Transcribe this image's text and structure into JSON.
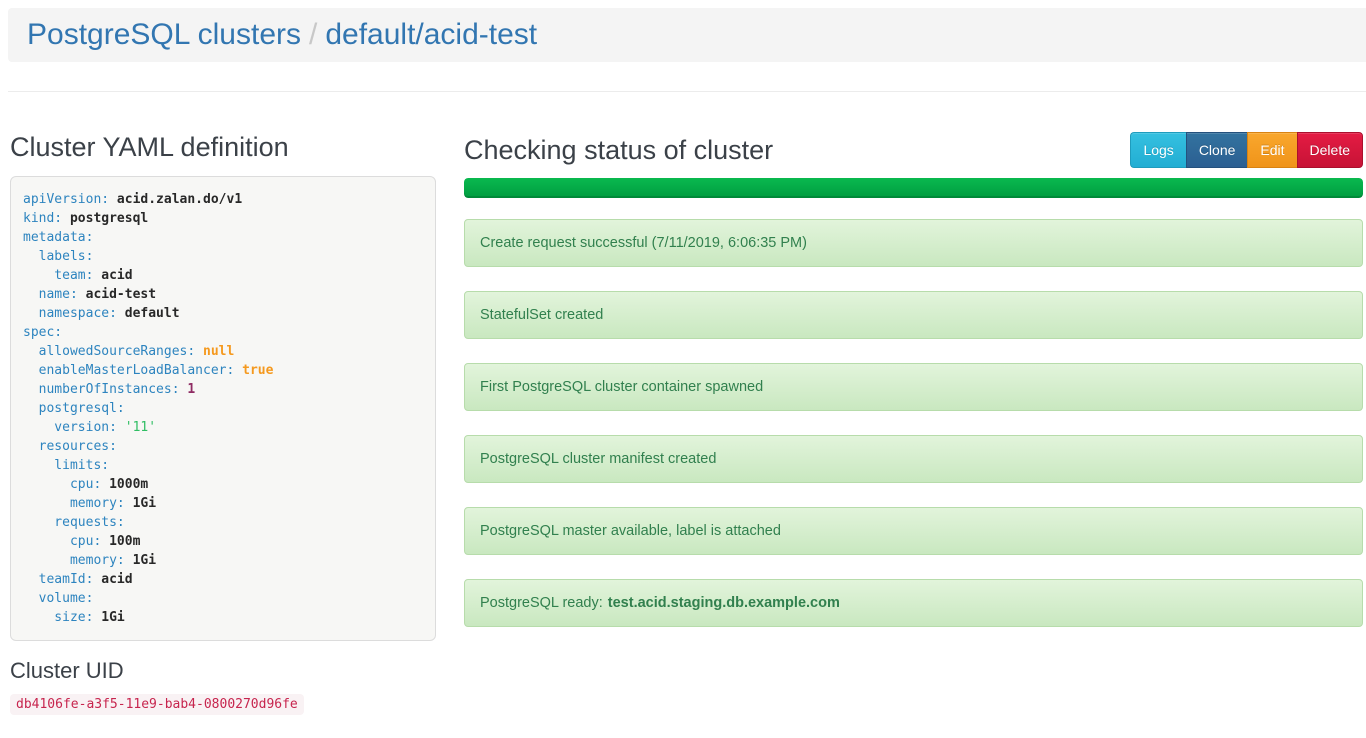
{
  "header": {
    "breadcrumb_root": "PostgreSQL clusters",
    "separator": "/",
    "breadcrumb_current": "default/acid-test"
  },
  "yaml_section": {
    "title": "Cluster YAML definition",
    "lines": [
      [
        {
          "t": "key",
          "v": "apiVersion:"
        },
        {
          "t": "val",
          "v": " acid.zalan.do/v1"
        }
      ],
      [
        {
          "t": "key",
          "v": "kind:"
        },
        {
          "t": "val",
          "v": " postgresql"
        }
      ],
      [
        {
          "t": "key",
          "v": "metadata:"
        }
      ],
      [
        {
          "t": "key",
          "v": "  labels:"
        }
      ],
      [
        {
          "t": "key",
          "v": "    team:"
        },
        {
          "t": "val",
          "v": " acid"
        }
      ],
      [
        {
          "t": "key",
          "v": "  name:"
        },
        {
          "t": "val",
          "v": " acid-test"
        }
      ],
      [
        {
          "t": "key",
          "v": "  namespace:"
        },
        {
          "t": "val",
          "v": " default"
        }
      ],
      [
        {
          "t": "key",
          "v": "spec:"
        }
      ],
      [
        {
          "t": "key",
          "v": "  allowedSourceRanges:"
        },
        {
          "t": "literal",
          "v": " null"
        }
      ],
      [
        {
          "t": "key",
          "v": "  enableMasterLoadBalancer:"
        },
        {
          "t": "literal",
          "v": " true"
        }
      ],
      [
        {
          "t": "key",
          "v": "  numberOfInstances:"
        },
        {
          "t": "number",
          "v": " 1"
        }
      ],
      [
        {
          "t": "key",
          "v": "  postgresql:"
        }
      ],
      [
        {
          "t": "key",
          "v": "    version:"
        },
        {
          "t": "string",
          "v": " '11'"
        }
      ],
      [
        {
          "t": "key",
          "v": "  resources:"
        }
      ],
      [
        {
          "t": "key",
          "v": "    limits:"
        }
      ],
      [
        {
          "t": "key",
          "v": "      cpu:"
        },
        {
          "t": "val",
          "v": " 1000m"
        }
      ],
      [
        {
          "t": "key",
          "v": "      memory:"
        },
        {
          "t": "val",
          "v": " 1Gi"
        }
      ],
      [
        {
          "t": "key",
          "v": "    requests:"
        }
      ],
      [
        {
          "t": "key",
          "v": "      cpu:"
        },
        {
          "t": "val",
          "v": " 100m"
        }
      ],
      [
        {
          "t": "key",
          "v": "      memory:"
        },
        {
          "t": "val",
          "v": " 1Gi"
        }
      ],
      [
        {
          "t": "key",
          "v": "  teamId:"
        },
        {
          "t": "val",
          "v": " acid"
        }
      ],
      [
        {
          "t": "key",
          "v": "  volume:"
        }
      ],
      [
        {
          "t": "key",
          "v": "    size:"
        },
        {
          "t": "val",
          "v": " 1Gi"
        }
      ]
    ]
  },
  "uid_section": {
    "title": "Cluster UID",
    "uid": "db4106fe-a3f5-11e9-bab4-0800270d96fe"
  },
  "status_section": {
    "title": "Checking status of cluster",
    "buttons": [
      {
        "label": "Logs",
        "type": "info"
      },
      {
        "label": "Clone",
        "type": "primary"
      },
      {
        "label": "Edit",
        "type": "warning"
      },
      {
        "label": "Delete",
        "type": "danger"
      }
    ],
    "progress": {
      "percent": 100
    },
    "messages": [
      {
        "text": "Create request successful (7/11/2019, 6:06:35 PM)"
      },
      {
        "text": "StatefulSet created"
      },
      {
        "text": "First PostgreSQL cluster container spawned"
      },
      {
        "text": "PostgreSQL cluster manifest created"
      },
      {
        "text": "PostgreSQL master available, label is attached"
      },
      {
        "text": "PostgreSQL ready:",
        "bold": "test.acid.staging.db.example.com"
      }
    ]
  },
  "colors": {
    "link_blue": "#3276b1",
    "header_bg": "#f4f4f4",
    "progress_green": "#00a647",
    "alert_bg_top": "#e2f4db",
    "alert_bg_bottom": "#c9e8c0",
    "alert_border": "#b7dcab",
    "alert_text": "#31804e",
    "uid_pink": "#c7254e",
    "uid_bg": "#f9f2f4",
    "btn_info": "#29b7d9",
    "btn_primary": "#2b5f92",
    "btn_warning": "#f49a22",
    "btn_danger": "#d9173c",
    "yaml_key": "#2d84bf",
    "yaml_literal": "#f5991e",
    "yaml_number": "#8f2c63",
    "yaml_string": "#2fbe63"
  }
}
